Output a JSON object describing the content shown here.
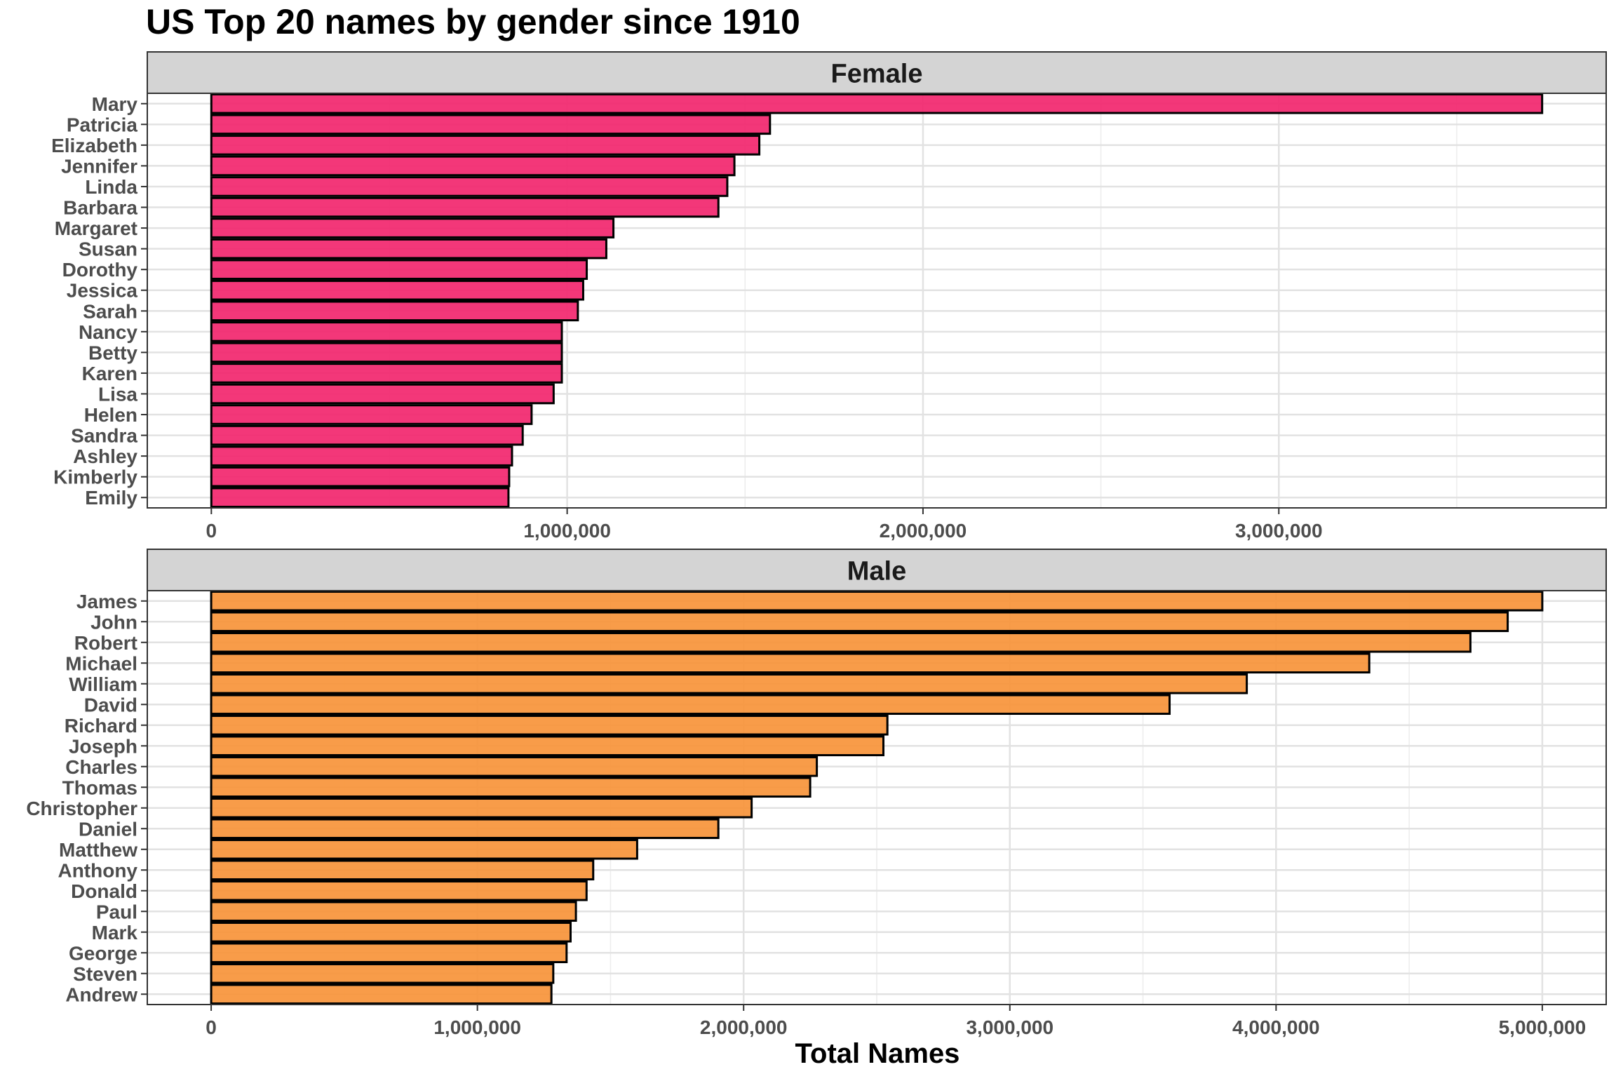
{
  "title": "US Top 20 names by gender since 1910",
  "xlabel": "Total Names",
  "chart_data": [
    {
      "type": "bar",
      "orientation": "horizontal",
      "panel": "Female",
      "fill_color": "#f2286f",
      "categories": [
        "Mary",
        "Patricia",
        "Elizabeth",
        "Jennifer",
        "Linda",
        "Barbara",
        "Margaret",
        "Susan",
        "Dorothy",
        "Jessica",
        "Sarah",
        "Nancy",
        "Betty",
        "Karen",
        "Lisa",
        "Helen",
        "Sandra",
        "Ashley",
        "Kimberly",
        "Emily"
      ],
      "values": [
        3740000,
        1570000,
        1540000,
        1470000,
        1450000,
        1425000,
        1130000,
        1110000,
        1055000,
        1045000,
        1030000,
        985000,
        985000,
        985000,
        962000,
        900000,
        875000,
        845000,
        837000,
        835000
      ],
      "xlim": [
        -180000,
        3920000
      ],
      "xticks": [
        0,
        1000000,
        2000000,
        3000000
      ],
      "xtick_labels": [
        "0",
        "1,000,000",
        "2,000,000",
        "3,000,000"
      ],
      "grid": true
    },
    {
      "type": "bar",
      "orientation": "horizontal",
      "panel": "Male",
      "fill_color": "#f7953b",
      "categories": [
        "James",
        "John",
        "Robert",
        "Michael",
        "William",
        "David",
        "Richard",
        "Joseph",
        "Charles",
        "Thomas",
        "Christopher",
        "Daniel",
        "Matthew",
        "Anthony",
        "Donald",
        "Paul",
        "Mark",
        "George",
        "Steven",
        "Andrew"
      ],
      "values": [
        5000000,
        4870000,
        4730000,
        4350000,
        3890000,
        3600000,
        2540000,
        2525000,
        2275000,
        2250000,
        2030000,
        1905000,
        1600000,
        1435000,
        1410000,
        1370000,
        1350000,
        1335000,
        1285000,
        1278000
      ],
      "xlim": [
        -240000,
        5240000
      ],
      "xticks": [
        0,
        1000000,
        2000000,
        3000000,
        4000000,
        5000000
      ],
      "xtick_labels": [
        "0",
        "1,000,000",
        "2,000,000",
        "3,000,000",
        "4,000,000",
        "5,000,000"
      ],
      "grid": true
    }
  ]
}
